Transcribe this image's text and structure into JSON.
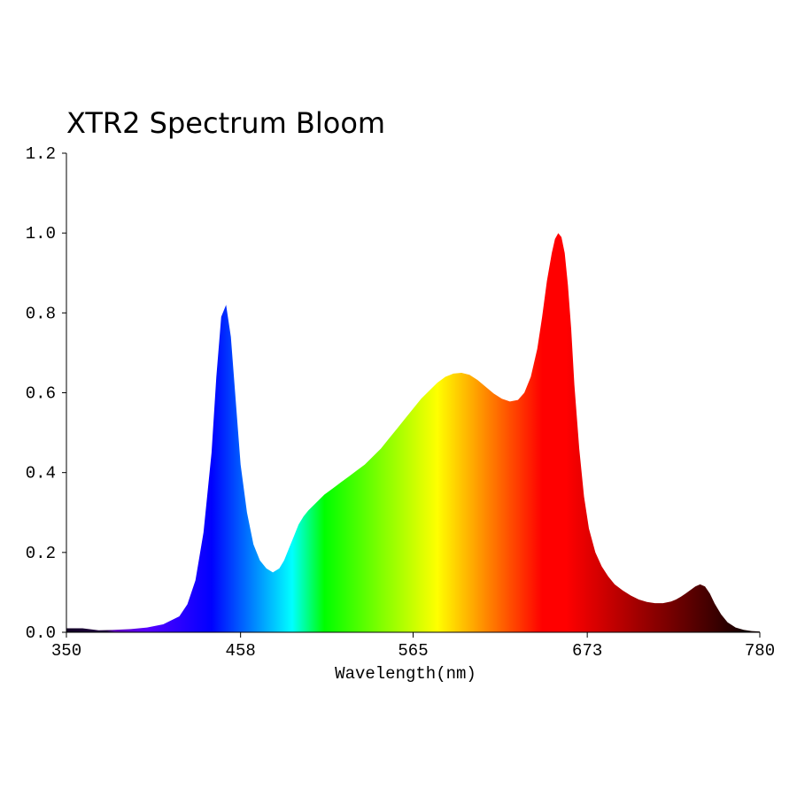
{
  "chart_data": {
    "type": "area",
    "title": "XTR2 Spectrum Bloom",
    "xlabel": "Wavelength(nm)",
    "ylabel": "",
    "xlim": [
      350,
      780
    ],
    "ylim": [
      0,
      1.2
    ],
    "x_ticks": [
      "350",
      "458",
      "565",
      "673",
      "780"
    ],
    "y_ticks": [
      "0.0",
      "0.2",
      "0.4",
      "0.6",
      "0.8",
      "1.0",
      "1.2"
    ],
    "grid": false,
    "legend": "none",
    "fill": "wavelength-colored spectrum",
    "series": [
      {
        "x": [
          350,
          360,
          370,
          380,
          390,
          400,
          410,
          420,
          425,
          430,
          435,
          440,
          443,
          446,
          449,
          452,
          455,
          458,
          462,
          466,
          470,
          474,
          478,
          482,
          485,
          488,
          491,
          494,
          497,
          500,
          505,
          510,
          515,
          520,
          525,
          530,
          535,
          540,
          545,
          550,
          555,
          560,
          565,
          570,
          575,
          580,
          585,
          590,
          595,
          600,
          605,
          610,
          615,
          620,
          625,
          630,
          634,
          638,
          642,
          645,
          648,
          651,
          653,
          655,
          657,
          659,
          661,
          663,
          665,
          668,
          671,
          674,
          678,
          682,
          686,
          690,
          695,
          700,
          705,
          710,
          715,
          720,
          725,
          728,
          731,
          734,
          737,
          740,
          743,
          746,
          749,
          752,
          756,
          760,
          765,
          770,
          775,
          780
        ],
        "y": [
          0.01,
          0.01,
          0.005,
          0.006,
          0.008,
          0.012,
          0.02,
          0.04,
          0.07,
          0.13,
          0.25,
          0.45,
          0.64,
          0.79,
          0.82,
          0.74,
          0.58,
          0.42,
          0.3,
          0.22,
          0.18,
          0.16,
          0.15,
          0.16,
          0.18,
          0.21,
          0.24,
          0.27,
          0.29,
          0.305,
          0.325,
          0.345,
          0.36,
          0.375,
          0.39,
          0.405,
          0.42,
          0.44,
          0.46,
          0.485,
          0.51,
          0.535,
          0.56,
          0.585,
          0.605,
          0.625,
          0.64,
          0.648,
          0.65,
          0.645,
          0.632,
          0.615,
          0.598,
          0.585,
          0.578,
          0.582,
          0.6,
          0.64,
          0.71,
          0.79,
          0.88,
          0.95,
          0.985,
          1.0,
          0.99,
          0.95,
          0.87,
          0.76,
          0.62,
          0.46,
          0.34,
          0.26,
          0.2,
          0.165,
          0.14,
          0.12,
          0.105,
          0.092,
          0.082,
          0.076,
          0.073,
          0.073,
          0.077,
          0.082,
          0.089,
          0.097,
          0.106,
          0.115,
          0.12,
          0.115,
          0.097,
          0.072,
          0.045,
          0.025,
          0.012,
          0.006,
          0.003,
          0.002
        ]
      }
    ]
  }
}
